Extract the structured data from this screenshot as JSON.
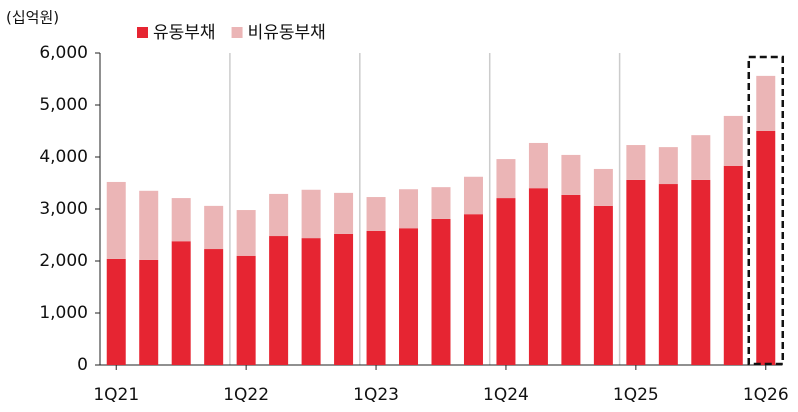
{
  "chart_data": {
    "type": "stacked_bar",
    "unit_label": "(십억원)",
    "categories": [
      "1Q21",
      null,
      null,
      null,
      "1Q22",
      null,
      null,
      null,
      "1Q23",
      null,
      null,
      null,
      "1Q24",
      null,
      null,
      null,
      "1Q25",
      null,
      null,
      null,
      "1Q26"
    ],
    "series": [
      {
        "name": "유동부채",
        "color": "#e62532",
        "values": [
          2040,
          2020,
          2380,
          2230,
          2100,
          2480,
          2440,
          2520,
          2580,
          2630,
          2810,
          2900,
          3210,
          3400,
          3270,
          3060,
          3560,
          3480,
          3560,
          3830,
          4500
        ]
      },
      {
        "name": "비유동부채",
        "color": "#ebb5b6",
        "values": [
          1480,
          1330,
          830,
          830,
          880,
          810,
          930,
          790,
          650,
          750,
          610,
          720,
          750,
          870,
          770,
          710,
          670,
          710,
          860,
          960,
          1060
        ]
      }
    ],
    "ylim": [
      0,
      6000
    ],
    "yticks": [
      0,
      {
        "value": 1000,
        "label": "1,000"
      },
      {
        "value": 2000,
        "label": "2,000"
      },
      {
        "value": 3000,
        "label": "3,000"
      },
      {
        "value": 4000,
        "label": "4,000"
      },
      {
        "value": 5000,
        "label": "5,000"
      },
      {
        "value": 6000,
        "label": "6,000"
      }
    ]
  }
}
